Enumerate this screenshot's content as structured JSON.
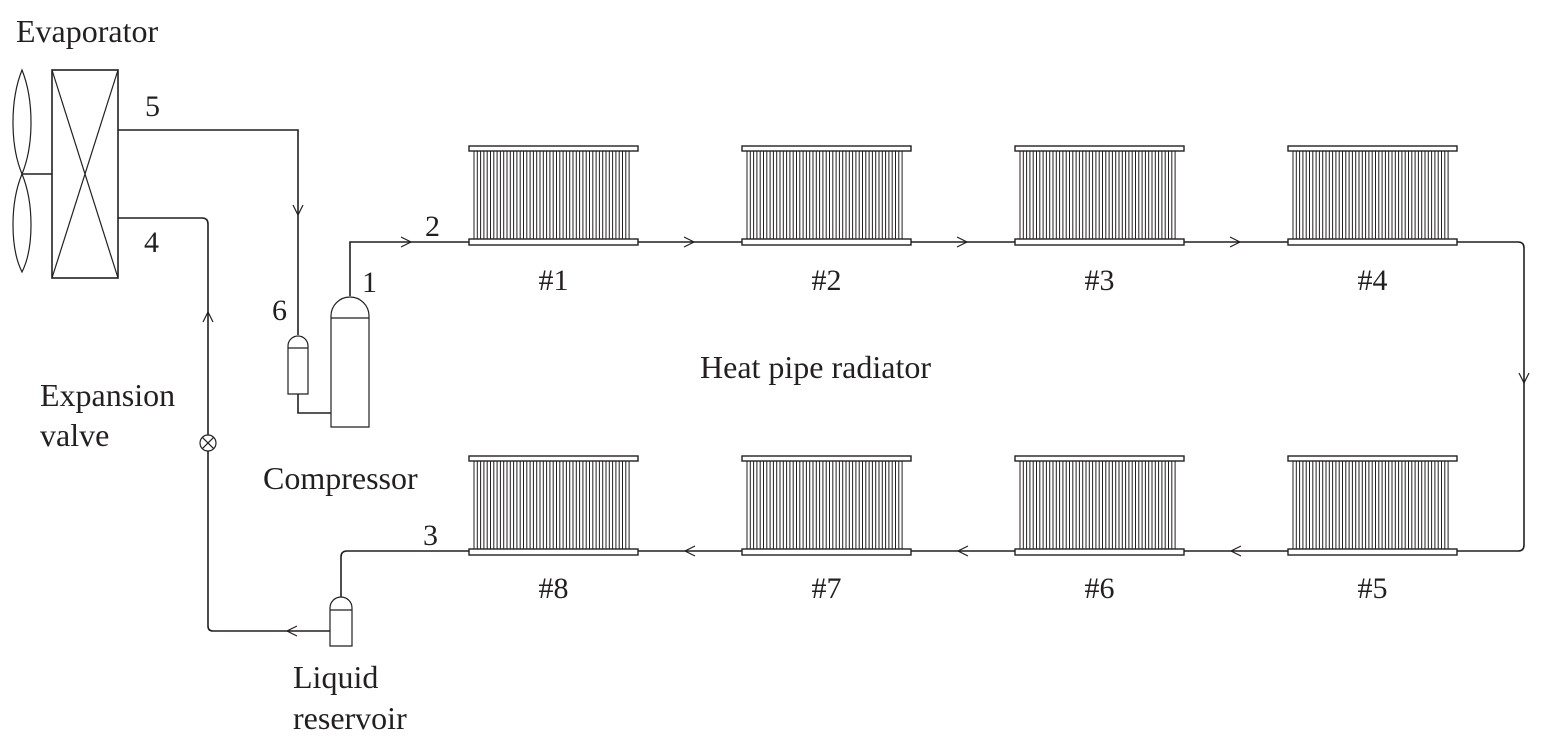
{
  "labels": {
    "evaporator": "Evaporator",
    "expansion_valve_line1": "Expansion",
    "expansion_valve_line2": "valve",
    "compressor": "Compressor",
    "liquid_reservoir_line1": "Liquid",
    "liquid_reservoir_line2": "reservoir",
    "heat_pipe_radiator": "Heat pipe radiator"
  },
  "points": {
    "p1": "1",
    "p2": "2",
    "p3": "3",
    "p4": "4",
    "p5": "5",
    "p6": "6"
  },
  "radiators": [
    "#1",
    "#2",
    "#3",
    "#4",
    "#5",
    "#6",
    "#7",
    "#8"
  ],
  "colors": {
    "line": "#231f20",
    "background": "#ffffff"
  }
}
